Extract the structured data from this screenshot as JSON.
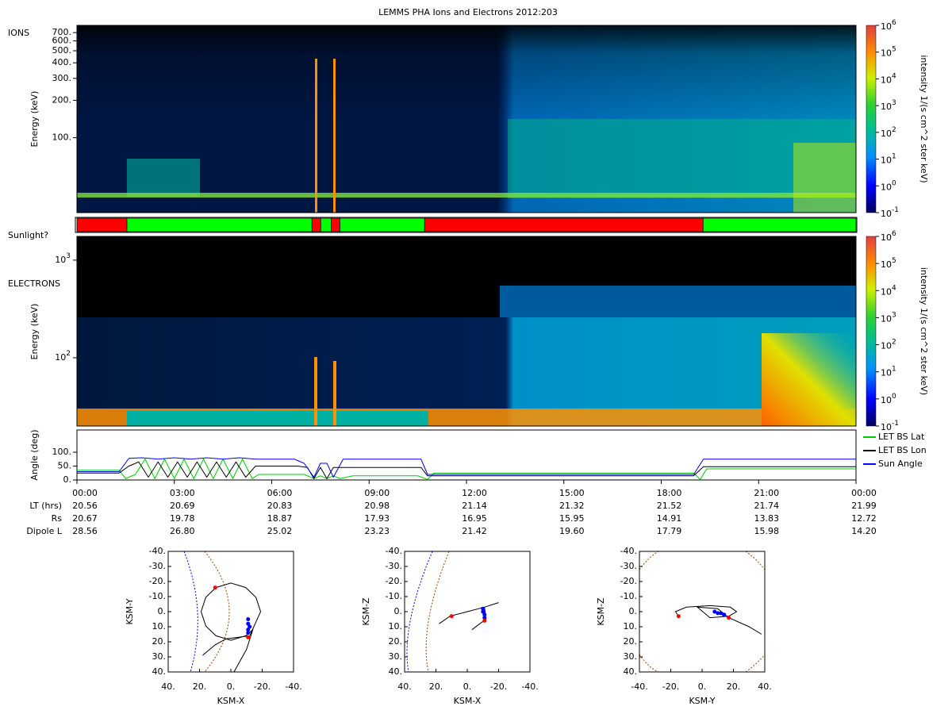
{
  "title": "LEMMS PHA Ions and Electrons  2012:203",
  "time_axis": {
    "xlim": [
      0,
      24
    ],
    "ticks": [
      {
        "value": 0,
        "label": "00:00"
      },
      {
        "value": 3,
        "label": "03:00"
      },
      {
        "value": 6,
        "label": "06:00"
      },
      {
        "value": 9,
        "label": "09:00"
      },
      {
        "value": 12,
        "label": "12:00"
      },
      {
        "value": 15,
        "label": "15:00"
      },
      {
        "value": 18,
        "label": "18:00"
      },
      {
        "value": 21,
        "label": "21:00"
      },
      {
        "value": 24,
        "label": "00:00"
      }
    ]
  },
  "ions": {
    "label": "IONS",
    "ylabel": "Energy (keV)",
    "ylim": [
      25,
      800
    ],
    "log_scale": true,
    "yticks": [
      {
        "value": 700,
        "label": "700."
      },
      {
        "value": 600,
        "label": "600."
      },
      {
        "value": 500,
        "label": "500."
      },
      {
        "value": 400,
        "label": "400."
      },
      {
        "value": 300,
        "label": "300."
      },
      {
        "value": 200,
        "label": "200."
      },
      {
        "value": 100,
        "label": "100."
      }
    ]
  },
  "electrons": {
    "label": "ELECTRONS",
    "ylabel": "Energy (keV)",
    "ylim": [
      20,
      1750
    ],
    "log_scale": true,
    "yticks": [
      {
        "value": 1000,
        "base": "10",
        "exp": "3"
      },
      {
        "value": 100,
        "base": "10",
        "exp": "2"
      }
    ]
  },
  "colorbar": {
    "label": "intensity 1/(s cm^2 ster keV)",
    "lim": [
      0.1,
      1000000
    ],
    "ticks": [
      {
        "value": 1000000,
        "base": "10",
        "exp": "6"
      },
      {
        "value": 100000,
        "base": "10",
        "exp": "5"
      },
      {
        "value": 10000,
        "base": "10",
        "exp": "4"
      },
      {
        "value": 1000,
        "base": "10",
        "exp": "3"
      },
      {
        "value": 100,
        "base": "10",
        "exp": "2"
      },
      {
        "value": 10,
        "base": "10",
        "exp": "1"
      },
      {
        "value": 1,
        "base": "10",
        "exp": "0"
      },
      {
        "value": 0.1,
        "base": "10",
        "exp": "-1"
      }
    ]
  },
  "sunlight": {
    "label": "Sunlight?",
    "sunlit_color": "#00ff00",
    "shadow_color": "#ff0000",
    "segments": [
      {
        "start": 0,
        "end": 1.54,
        "sunlit": false
      },
      {
        "start": 1.54,
        "end": 7.24,
        "sunlit": true
      },
      {
        "start": 7.24,
        "end": 7.51,
        "sunlit": false
      },
      {
        "start": 7.51,
        "end": 7.83,
        "sunlit": true
      },
      {
        "start": 7.83,
        "end": 8.1,
        "sunlit": false
      },
      {
        "start": 8.1,
        "end": 10.71,
        "sunlit": true
      },
      {
        "start": 10.71,
        "end": 19.29,
        "sunlit": false
      },
      {
        "start": 19.29,
        "end": 24,
        "sunlit": true
      }
    ]
  },
  "angle": {
    "ylabel": "Angle (deg)",
    "ylim": [
      0,
      180
    ],
    "yticks": [
      {
        "value": 0,
        "label": "0."
      },
      {
        "value": 50,
        "label": "50."
      },
      {
        "value": 100,
        "label": "100."
      }
    ],
    "series": [
      {
        "name": "LET BS Lat",
        "color": "#00cc00",
        "x": [
          0,
          1.3,
          1.5,
          1.8,
          2.1,
          2.4,
          2.7,
          3.0,
          3.3,
          3.6,
          3.9,
          4.2,
          4.5,
          4.8,
          5.1,
          5.4,
          5.6,
          7.0,
          7.3,
          7.5,
          7.7,
          7.9,
          8.1,
          8.5,
          10.5,
          10.8,
          11.0,
          19.0,
          19.2,
          19.4,
          24
        ],
        "values": [
          35,
          35,
          5,
          20,
          75,
          5,
          75,
          5,
          75,
          5,
          75,
          5,
          75,
          5,
          75,
          5,
          20,
          20,
          5,
          15,
          5,
          15,
          5,
          15,
          15,
          2,
          25,
          25,
          2,
          40,
          40
        ]
      },
      {
        "name": "LET BS Lon",
        "color": "#000000",
        "x": [
          0,
          1.3,
          1.6,
          1.9,
          2.2,
          2.5,
          2.8,
          3.1,
          3.4,
          3.7,
          4.0,
          4.3,
          4.6,
          4.9,
          5.2,
          5.5,
          6.8,
          7.1,
          7.3,
          7.5,
          7.7,
          7.9,
          8.1,
          8.3,
          10.6,
          10.8,
          19.0,
          19.3,
          24
        ],
        "values": [
          25,
          25,
          50,
          65,
          10,
          65,
          10,
          65,
          10,
          65,
          10,
          65,
          10,
          65,
          10,
          50,
          50,
          45,
          5,
          45,
          5,
          45,
          45,
          45,
          45,
          15,
          15,
          48,
          48
        ]
      },
      {
        "name": "Sun Angle",
        "color": "#0000ff",
        "x": [
          0,
          1.3,
          1.6,
          2.0,
          2.5,
          3.0,
          3.5,
          4.0,
          4.5,
          5.0,
          5.5,
          6.7,
          7.0,
          7.3,
          7.5,
          7.7,
          7.9,
          8.2,
          10.6,
          10.8,
          19.0,
          19.3,
          24
        ],
        "values": [
          30,
          30,
          78,
          80,
          75,
          80,
          75,
          80,
          75,
          80,
          75,
          75,
          60,
          10,
          60,
          60,
          10,
          75,
          75,
          20,
          20,
          75,
          75
        ]
      }
    ]
  },
  "ephemeris": {
    "rows": [
      {
        "label": "LT (hrs)",
        "values": [
          "20.56",
          "20.69",
          "20.83",
          "20.98",
          "21.14",
          "21.32",
          "21.52",
          "21.74",
          "21.99"
        ]
      },
      {
        "label": "Rs",
        "values": [
          "20.67",
          "19.78",
          "18.87",
          "17.93",
          "16.95",
          "15.95",
          "14.91",
          "13.83",
          "12.72"
        ]
      },
      {
        "label": "Dipole L",
        "values": [
          "28.56",
          "26.80",
          "25.02",
          "23.23",
          "21.42",
          "19.60",
          "17.79",
          "15.98",
          "14.20"
        ]
      }
    ]
  },
  "orbits": [
    {
      "xlabel": "KSM-X",
      "ylabel": "KSM-Y",
      "xlim": [
        40,
        -40
      ],
      "ylim": [
        -40,
        40
      ],
      "xticks": [
        {
          "value": 40,
          "label": "40."
        },
        {
          "value": 20,
          "label": "20."
        },
        {
          "value": 0,
          "label": "0."
        },
        {
          "value": -20,
          "label": "-20."
        },
        {
          "value": -40,
          "label": "-40."
        }
      ],
      "yticks": [
        {
          "value": -40,
          "label": "-40."
        },
        {
          "value": -30,
          "label": "-30."
        },
        {
          "value": -20,
          "label": "-20."
        },
        {
          "value": -10,
          "label": "-10."
        },
        {
          "value": 0,
          "label": "0."
        },
        {
          "value": 10,
          "label": "10."
        },
        {
          "value": 20,
          "label": "20."
        },
        {
          "value": 30,
          "label": "30."
        },
        {
          "value": 40,
          "label": "40."
        }
      ],
      "track": {
        "x": [
          18,
          10,
          3,
          -5,
          -12,
          -19,
          -16,
          -9.5,
          0,
          9.5,
          16,
          19,
          16,
          9.5,
          0,
          -9.5,
          -14,
          -10,
          -2
        ],
        "y": [
          29,
          22,
          18,
          17,
          16,
          0,
          -9.5,
          -16,
          -19,
          -16,
          -9.5,
          0,
          9.5,
          16,
          19,
          16,
          12,
          25,
          40
        ]
      },
      "red_points": {
        "x": [
          10,
          -11
        ],
        "y": [
          -16,
          17
        ]
      },
      "blue_points": {
        "x": [
          -11,
          -11,
          -12,
          -11,
          -11
        ],
        "y": [
          5,
          8,
          10,
          12,
          14
        ]
      }
    },
    {
      "xlabel": "KSM-X",
      "ylabel": "KSM-Z",
      "xlim": [
        40,
        -40
      ],
      "ylim": [
        -40,
        40
      ],
      "xticks": [
        {
          "value": 40,
          "label": "40."
        },
        {
          "value": 20,
          "label": "20."
        },
        {
          "value": 0,
          "label": "0."
        },
        {
          "value": -20,
          "label": "-20."
        },
        {
          "value": -40,
          "label": "-40."
        }
      ],
      "yticks": [
        {
          "value": -40,
          "label": "-40."
        },
        {
          "value": -30,
          "label": "-30."
        },
        {
          "value": -20,
          "label": "-20."
        },
        {
          "value": -10,
          "label": "-10."
        },
        {
          "value": 0,
          "label": "0."
        },
        {
          "value": 10,
          "label": "10."
        },
        {
          "value": 20,
          "label": "20."
        },
        {
          "value": 30,
          "label": "30."
        },
        {
          "value": 40,
          "label": "40."
        }
      ],
      "track": {
        "x": [
          18,
          11,
          0,
          -11,
          -20,
          -11,
          -12,
          -8,
          -3
        ],
        "y": [
          8,
          3,
          0,
          -3,
          -6,
          -3,
          5,
          8,
          12
        ]
      },
      "red_points": {
        "x": [
          10,
          -11
        ],
        "y": [
          3,
          6
        ]
      },
      "blue_points": {
        "x": [
          -10,
          -10,
          -11,
          -11
        ],
        "y": [
          -2,
          0,
          2,
          4
        ]
      }
    },
    {
      "xlabel": "KSM-Y",
      "ylabel": "KSM-Z",
      "xlim": [
        -40,
        40
      ],
      "ylim": [
        -40,
        40
      ],
      "xticks": [
        {
          "value": -40,
          "label": "-40."
        },
        {
          "value": -20,
          "label": "-20."
        },
        {
          "value": 0,
          "label": "0."
        },
        {
          "value": 20,
          "label": "20."
        },
        {
          "value": 40,
          "label": "40."
        }
      ],
      "yticks": [
        {
          "value": -40,
          "label": "-40."
        },
        {
          "value": -30,
          "label": "-30."
        },
        {
          "value": -20,
          "label": "-20."
        },
        {
          "value": -10,
          "label": "-10."
        },
        {
          "value": 0,
          "label": "0."
        },
        {
          "value": 10,
          "label": "10."
        },
        {
          "value": 20,
          "label": "20."
        },
        {
          "value": 30,
          "label": "30."
        },
        {
          "value": 40,
          "label": "40."
        }
      ],
      "track": {
        "x": [
          -15,
          -17,
          -10,
          5,
          18,
          22,
          17,
          5,
          -3,
          10,
          17,
          30,
          38
        ],
        "y": [
          3,
          0,
          -3,
          -4,
          -3,
          0,
          3,
          4,
          -3,
          -2,
          4,
          10,
          15
        ]
      },
      "red_points": {
        "x": [
          -15,
          17
        ],
        "y": [
          3,
          4
        ]
      },
      "blue_points": {
        "x": [
          8,
          10,
          12,
          14
        ],
        "y": [
          0,
          1,
          1,
          2
        ]
      }
    }
  ]
}
